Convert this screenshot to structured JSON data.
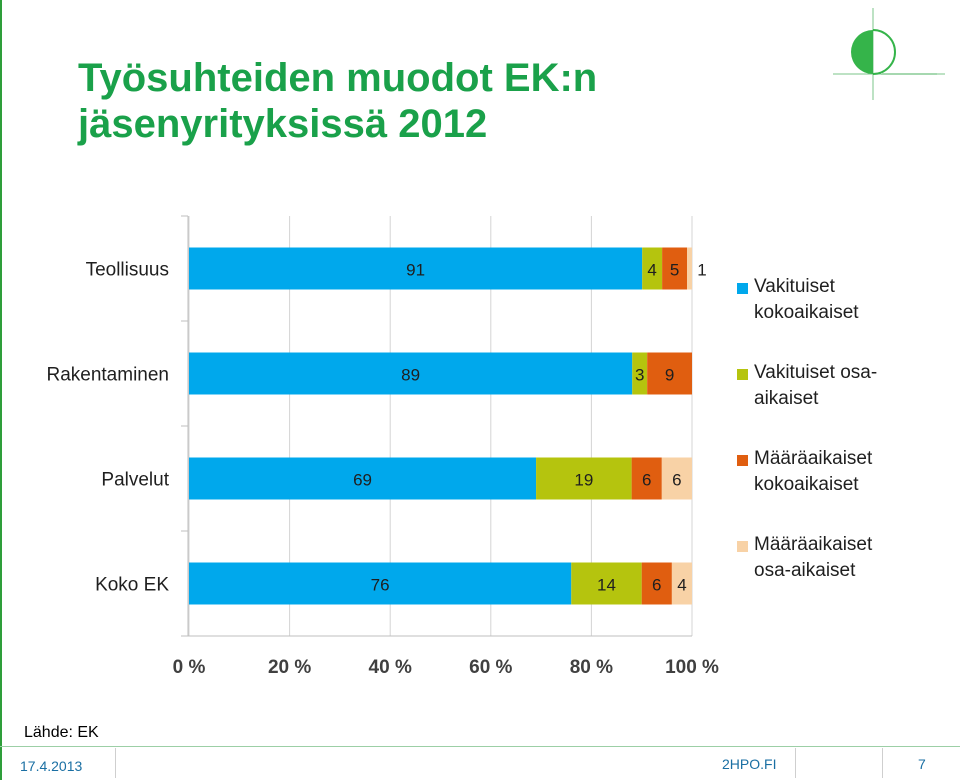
{
  "slide": {
    "title_line1": "Työsuhteiden muodot EK:n",
    "title_line2": "jäsenyrityksissä 2012",
    "source": "Lähde: EK",
    "date": "17.4.2013",
    "site": "2HPO.FI",
    "page_number": "7"
  },
  "colors": {
    "title": "#1aa14a",
    "footer_text": "#1a6fa3",
    "series": [
      "#00a8ec",
      "#b5c40e",
      "#e05e10",
      "#f8d2a6"
    ]
  },
  "chart_data": {
    "type": "bar",
    "orientation": "horizontal",
    "stacked": "percent",
    "categories": [
      "Teollisuus",
      "Rakentaminen",
      "Palvelut",
      "Koko EK"
    ],
    "series": [
      {
        "name": "Vakituiset kokoaikaiset",
        "values": [
          91,
          89,
          69,
          76
        ]
      },
      {
        "name": "Vakituiset osa-aikaiset",
        "values": [
          4,
          3,
          19,
          14
        ]
      },
      {
        "name": "Määräaikaiset kokoaikaiset",
        "values": [
          5,
          9,
          6,
          6
        ]
      },
      {
        "name": "Määräaikaiset osa-aikaiset",
        "values": [
          1,
          0,
          6,
          4
        ]
      }
    ],
    "data_labels": [
      [
        "91",
        "4",
        "5",
        "1"
      ],
      [
        "89",
        "3",
        "9",
        ""
      ],
      [
        "69",
        "19",
        "6",
        "6"
      ],
      [
        "76",
        "14",
        "6",
        "4"
      ]
    ],
    "x_ticks": [
      "0 %",
      "20 %",
      "40 %",
      "60 %",
      "80 %",
      "100 %"
    ],
    "xlim": [
      0,
      100
    ],
    "grid": true,
    "legend_position": "right"
  }
}
